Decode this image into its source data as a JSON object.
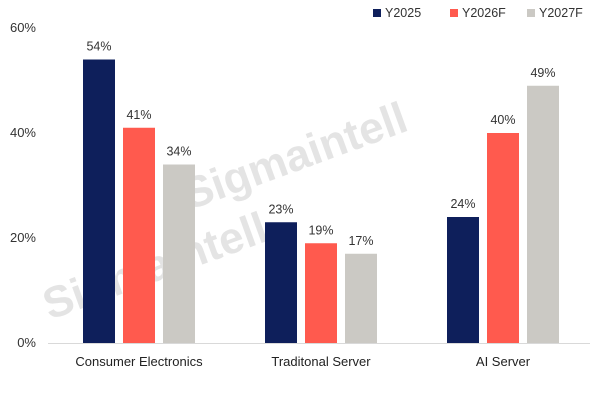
{
  "chart_data": {
    "type": "bar",
    "categories": [
      "Consumer Electronics",
      "Traditonal Server",
      "AI Server"
    ],
    "series": [
      {
        "name": "Y2025",
        "values": [
          54,
          23,
          24
        ],
        "labels": [
          "54%",
          "23%",
          "24%"
        ],
        "color": "#0e1f5b"
      },
      {
        "name": "Y2026F",
        "values": [
          41,
          19,
          40
        ],
        "labels": [
          "41%",
          "19%",
          "40%"
        ],
        "color": "#ff5a4e"
      },
      {
        "name": "Y2027F",
        "values": [
          34,
          17,
          49
        ],
        "labels": [
          "34%",
          "17%",
          "49%"
        ],
        "color": "#cbc9c4"
      }
    ],
    "yticks": [
      "0%",
      "20%",
      "40%",
      "60%"
    ],
    "ylim": [
      0,
      60
    ],
    "ytick_values": [
      0,
      20,
      40,
      60
    ],
    "grid": false,
    "legend_position": "top-right",
    "title": "",
    "xlabel": "",
    "ylabel": ""
  },
  "watermark": "Sigmaintell"
}
